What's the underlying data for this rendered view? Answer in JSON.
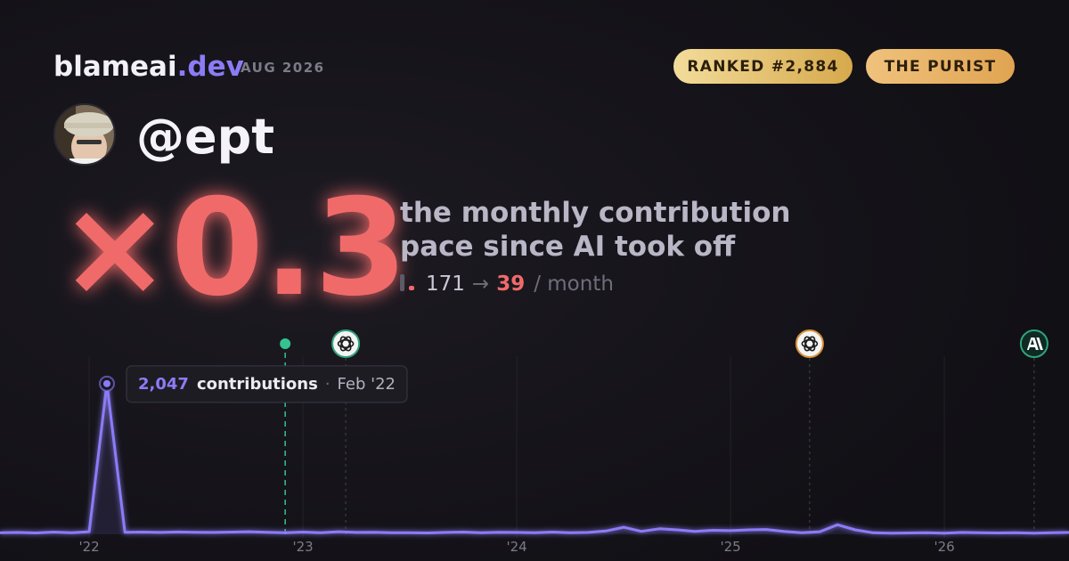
{
  "brand": {
    "name": "blameai",
    "tld": ".dev"
  },
  "period": "AUG 2026",
  "badges": [
    "RANKED #2,884",
    "THE PURIST"
  ],
  "handle": "@ept",
  "multiplier": "×0.3",
  "description": [
    "the monthly contribution",
    "pace since AI took off"
  ],
  "stats": {
    "before": 171,
    "arrow": "→",
    "after": 39,
    "unit": "/ month"
  },
  "chart_data": {
    "type": "line",
    "color": "#8b7cf6",
    "grid": true,
    "xlim": [
      2021.583,
      2026.583
    ],
    "xticks": [
      {
        "value": 2022,
        "label": "'22"
      },
      {
        "value": 2023,
        "label": "'23"
      },
      {
        "value": 2024,
        "label": "'24"
      },
      {
        "value": 2025,
        "label": "'25"
      },
      {
        "value": 2026,
        "label": "'26"
      }
    ],
    "ylim": [
      0,
      2420
    ],
    "x": [
      2021.583,
      2021.667,
      2021.75,
      2021.833,
      2021.917,
      2022,
      2022.083,
      2022.167,
      2022.25,
      2022.333,
      2022.417,
      2022.5,
      2022.583,
      2022.667,
      2022.75,
      2022.833,
      2022.917,
      2023,
      2023.083,
      2023.167,
      2023.25,
      2023.333,
      2023.417,
      2023.5,
      2023.583,
      2023.667,
      2023.75,
      2023.833,
      2023.917,
      2024,
      2024.083,
      2024.167,
      2024.25,
      2024.333,
      2024.417,
      2024.5,
      2024.583,
      2024.667,
      2024.75,
      2024.833,
      2024.917,
      2025,
      2025.083,
      2025.167,
      2025.25,
      2025.333,
      2025.417,
      2025.5,
      2025.583,
      2025.667,
      2025.75,
      2025.833,
      2025.917,
      2026,
      2026.083,
      2026.167,
      2026.25,
      2026.333,
      2026.417,
      2026.5,
      2026.583
    ],
    "values": [
      20,
      25,
      18,
      30,
      22,
      35,
      2047,
      28,
      30,
      25,
      32,
      28,
      25,
      30,
      35,
      28,
      20,
      30,
      22,
      35,
      25,
      28,
      20,
      22,
      18,
      25,
      30,
      20,
      28,
      25,
      22,
      30,
      20,
      25,
      45,
      95,
      40,
      75,
      60,
      40,
      55,
      50,
      60,
      65,
      40,
      20,
      35,
      130,
      60,
      20,
      15,
      18,
      20,
      15,
      25,
      20,
      18,
      20,
      15,
      20,
      25
    ],
    "value_labels": [
      null,
      null,
      null,
      null,
      null,
      null,
      "2,047",
      null,
      null,
      null,
      null,
      null,
      null,
      null,
      null,
      null,
      null,
      null,
      null,
      null,
      null,
      null,
      null,
      null,
      null,
      null,
      null,
      null,
      null,
      null,
      null,
      null,
      null,
      null,
      null,
      null,
      null,
      null,
      null,
      null,
      null,
      null,
      null,
      null,
      null,
      null,
      null,
      null,
      null,
      null,
      null,
      null,
      null,
      null,
      null,
      null,
      null,
      null,
      null,
      null,
      null
    ],
    "tooltip": {
      "unit": "contributions",
      "separator": "·",
      "date": "Feb '22"
    },
    "events": [
      {
        "x": 2022.917,
        "marker": "dot",
        "color": "#34c38f"
      },
      {
        "x": 2023.2,
        "marker": "openai",
        "color": "#2fa37a"
      },
      {
        "x": 2025.37,
        "marker": "openai",
        "color": "#d9913a"
      },
      {
        "x": 2026.42,
        "marker": "anthropic",
        "color": "#2fa37a"
      }
    ]
  }
}
